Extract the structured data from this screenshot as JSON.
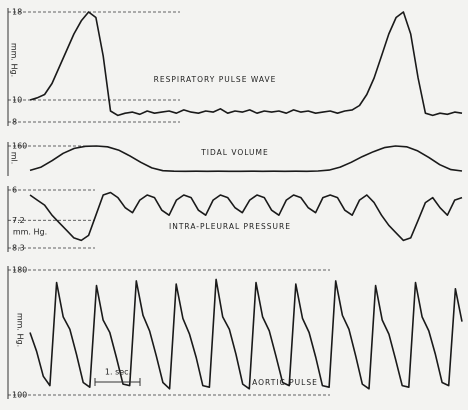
{
  "chart_data": [
    {
      "type": "line",
      "title": "RESPIRATORY PULSE WAVE",
      "ylabel": "mm. Hg.",
      "color": "#1a1a1a",
      "ylim": [
        8,
        18
      ],
      "yticks": [
        18,
        10,
        8
      ],
      "values": [
        10,
        10.2,
        10.5,
        11.5,
        13,
        14.5,
        16,
        17.2,
        18,
        17.5,
        14,
        9,
        8.6,
        8.8,
        8.9,
        8.7,
        9,
        8.8,
        8.9,
        9,
        8.8,
        9.1,
        8.9,
        8.8,
        9,
        8.9,
        9.2,
        8.8,
        9,
        8.9,
        9.1,
        8.8,
        9,
        8.9,
        9,
        8.8,
        9.1,
        8.9,
        9,
        8.8,
        8.9,
        9,
        8.8,
        9,
        9.1,
        9.5,
        10.5,
        12,
        14,
        16,
        17.5,
        18,
        16,
        12,
        8.8,
        8.6,
        8.8,
        8.7,
        8.9,
        8.8
      ]
    },
    {
      "type": "line",
      "title": "TIDAL VOLUME",
      "ylabel": "ml.",
      "color": "#1a1a1a",
      "ylim": [
        0,
        160
      ],
      "yticks": [
        160
      ],
      "values": [
        10,
        30,
        70,
        115,
        145,
        158,
        160,
        155,
        135,
        100,
        60,
        25,
        8,
        5,
        4,
        5,
        4,
        5,
        4,
        4,
        5,
        4,
        5,
        4,
        5,
        4,
        6,
        12,
        30,
        60,
        95,
        125,
        150,
        160,
        155,
        130,
        90,
        45,
        15,
        6
      ]
    },
    {
      "type": "line",
      "title": "INTRA-PLEURAL PRESSURE",
      "ylabel": "mm. Hg.",
      "color": "#1a1a1a",
      "ylim": [
        8.3,
        6
      ],
      "yticks": [
        6,
        7.2,
        8.3
      ],
      "values": [
        6.2,
        6.4,
        6.6,
        7.0,
        7.3,
        7.6,
        7.9,
        8.0,
        7.8,
        7.0,
        6.2,
        6.1,
        6.3,
        6.7,
        6.9,
        6.4,
        6.2,
        6.3,
        6.8,
        7.0,
        6.4,
        6.2,
        6.3,
        6.8,
        7.0,
        6.4,
        6.2,
        6.3,
        6.7,
        6.9,
        6.4,
        6.2,
        6.3,
        6.8,
        7.0,
        6.4,
        6.2,
        6.3,
        6.7,
        6.9,
        6.3,
        6.2,
        6.3,
        6.8,
        7.0,
        6.4,
        6.2,
        6.5,
        7.0,
        7.4,
        7.7,
        8.0,
        7.9,
        7.2,
        6.5,
        6.3,
        6.7,
        7.0,
        6.4,
        6.3
      ]
    },
    {
      "type": "line",
      "title": "AORTIC PULSE",
      "ylabel": "mm. Hg.",
      "color": "#1a1a1a",
      "scale_label": "1. sec.",
      "ylim": [
        100,
        180
      ],
      "yticks": [
        180,
        100
      ],
      "values": [
        140,
        128,
        112,
        106,
        172,
        150,
        142,
        126,
        108,
        105,
        170,
        148,
        140,
        124,
        107,
        106,
        173,
        151,
        141,
        125,
        108,
        104,
        171,
        149,
        139,
        124,
        106,
        105,
        174,
        150,
        142,
        126,
        107,
        104,
        172,
        150,
        141,
        125,
        108,
        106,
        171,
        149,
        140,
        124,
        106,
        105,
        173,
        151,
        142,
        125,
        107,
        104,
        170,
        148,
        139,
        123,
        106,
        105,
        172,
        150,
        141,
        126,
        108,
        106,
        168,
        147
      ]
    }
  ]
}
